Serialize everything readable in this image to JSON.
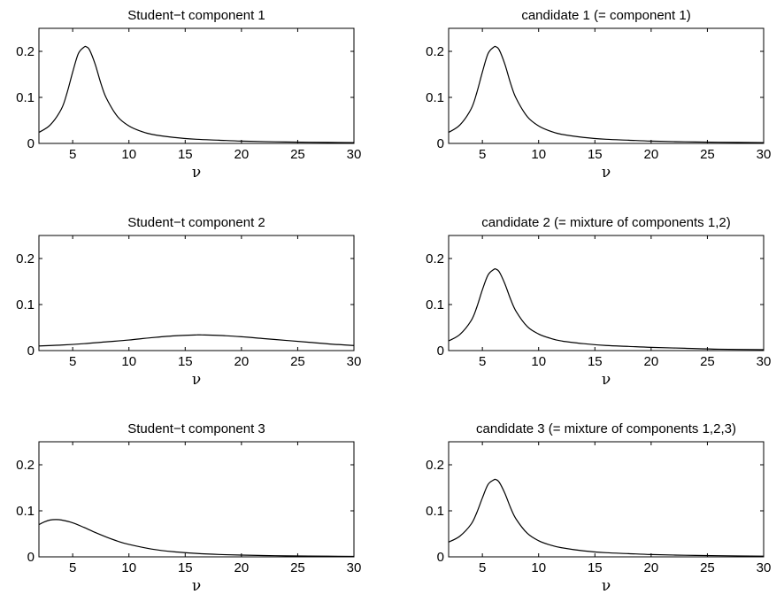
{
  "figure": {
    "line_color": "#000000",
    "background": "#ffffff"
  },
  "chart_data": [
    {
      "type": "line",
      "title": "Student−t component 1",
      "xlabel": "ν",
      "ylabel": "",
      "xlim": [
        2,
        30
      ],
      "ylim": [
        0,
        0.25
      ],
      "xticks": [
        5,
        10,
        15,
        20,
        25,
        30
      ],
      "yticks": [
        0,
        0.1,
        0.2
      ],
      "ytick_labels": [
        "0",
        "0.1",
        "0.2"
      ],
      "grid": false,
      "x": [
        2,
        3,
        4,
        4.5,
        5,
        5.5,
        6,
        6.2,
        6.5,
        7,
        7.5,
        8,
        9,
        10,
        11,
        12,
        14,
        16,
        18,
        20,
        23,
        26,
        30
      ],
      "y": [
        0.024,
        0.04,
        0.075,
        0.11,
        0.155,
        0.195,
        0.209,
        0.21,
        0.203,
        0.172,
        0.131,
        0.098,
        0.058,
        0.038,
        0.027,
        0.02,
        0.013,
        0.009,
        0.007,
        0.005,
        0.0035,
        0.0025,
        0.0018
      ]
    },
    {
      "type": "line",
      "title": "candidate 1 (= component 1)",
      "xlabel": "ν",
      "ylabel": "",
      "xlim": [
        2,
        30
      ],
      "ylim": [
        0,
        0.25
      ],
      "xticks": [
        5,
        10,
        15,
        20,
        25,
        30
      ],
      "yticks": [
        0,
        0.1,
        0.2
      ],
      "ytick_labels": [
        "0",
        "0.1",
        "0.2"
      ],
      "grid": false,
      "x": [
        2,
        3,
        4,
        4.5,
        5,
        5.5,
        6,
        6.2,
        6.5,
        7,
        7.5,
        8,
        9,
        10,
        11,
        12,
        14,
        16,
        18,
        20,
        23,
        26,
        30
      ],
      "y": [
        0.024,
        0.04,
        0.075,
        0.11,
        0.155,
        0.195,
        0.209,
        0.21,
        0.203,
        0.172,
        0.131,
        0.098,
        0.058,
        0.038,
        0.027,
        0.02,
        0.013,
        0.009,
        0.007,
        0.005,
        0.0035,
        0.0025,
        0.0018
      ]
    },
    {
      "type": "line",
      "title": "Student−t component 2",
      "xlabel": "ν",
      "ylabel": "",
      "xlim": [
        2,
        30
      ],
      "ylim": [
        0,
        0.25
      ],
      "xticks": [
        5,
        10,
        15,
        20,
        25,
        30
      ],
      "yticks": [
        0,
        0.1,
        0.2
      ],
      "ytick_labels": [
        "0",
        "0.1",
        "0.2"
      ],
      "grid": false,
      "x": [
        2,
        4,
        6,
        8,
        10,
        12,
        14,
        16,
        16.5,
        18,
        20,
        22,
        24,
        26,
        28,
        30
      ],
      "y": [
        0.01,
        0.012,
        0.015,
        0.019,
        0.023,
        0.028,
        0.032,
        0.034,
        0.034,
        0.033,
        0.03,
        0.026,
        0.022,
        0.018,
        0.014,
        0.011
      ]
    },
    {
      "type": "line",
      "title": "candidate 2 (= mixture of components 1,2)",
      "xlabel": "ν",
      "ylabel": "",
      "xlim": [
        2,
        30
      ],
      "ylim": [
        0,
        0.25
      ],
      "xticks": [
        5,
        10,
        15,
        20,
        25,
        30
      ],
      "yticks": [
        0,
        0.1,
        0.2
      ],
      "ytick_labels": [
        "0",
        "0.1",
        "0.2"
      ],
      "grid": false,
      "x": [
        2,
        3,
        4,
        4.5,
        5,
        5.5,
        6,
        6.2,
        6.5,
        7,
        7.5,
        8,
        9,
        10,
        11,
        12,
        14,
        16,
        18,
        20,
        23,
        26,
        30
      ],
      "y": [
        0.021,
        0.035,
        0.065,
        0.094,
        0.132,
        0.164,
        0.176,
        0.177,
        0.171,
        0.145,
        0.112,
        0.085,
        0.052,
        0.036,
        0.027,
        0.021,
        0.015,
        0.011,
        0.009,
        0.007,
        0.005,
        0.003,
        0.002
      ]
    },
    {
      "type": "line",
      "title": "Student−t component 3",
      "xlabel": "ν",
      "ylabel": "",
      "xlim": [
        2,
        30
      ],
      "ylim": [
        0,
        0.25
      ],
      "xticks": [
        5,
        10,
        15,
        20,
        25,
        30
      ],
      "yticks": [
        0,
        0.1,
        0.2
      ],
      "ytick_labels": [
        "0",
        "0.1",
        "0.2"
      ],
      "grid": false,
      "x": [
        2,
        2.5,
        3,
        3.5,
        4,
        5,
        6,
        7,
        8,
        9,
        10,
        12,
        14,
        16,
        18,
        20,
        23,
        26,
        30
      ],
      "y": [
        0.07,
        0.076,
        0.08,
        0.081,
        0.08,
        0.074,
        0.064,
        0.053,
        0.043,
        0.034,
        0.027,
        0.017,
        0.011,
        0.0075,
        0.0052,
        0.0038,
        0.0025,
        0.0017,
        0.0011
      ]
    },
    {
      "type": "line",
      "title": "candidate 3 (= mixture of components 1,2,3)",
      "xlabel": "ν",
      "ylabel": "",
      "xlim": [
        2,
        30
      ],
      "ylim": [
        0,
        0.25
      ],
      "xticks": [
        5,
        10,
        15,
        20,
        25,
        30
      ],
      "yticks": [
        0,
        0.1,
        0.2
      ],
      "ytick_labels": [
        "0",
        "0.1",
        "0.2"
      ],
      "grid": false,
      "x": [
        2,
        3,
        4,
        4.5,
        5,
        5.5,
        6,
        6.2,
        6.5,
        7,
        7.5,
        8,
        9,
        10,
        11,
        12,
        14,
        16,
        18,
        20,
        23,
        26,
        30
      ],
      "y": [
        0.032,
        0.045,
        0.071,
        0.096,
        0.128,
        0.157,
        0.167,
        0.168,
        0.162,
        0.138,
        0.107,
        0.082,
        0.051,
        0.035,
        0.026,
        0.02,
        0.013,
        0.009,
        0.007,
        0.005,
        0.0035,
        0.0025,
        0.0015
      ]
    }
  ]
}
